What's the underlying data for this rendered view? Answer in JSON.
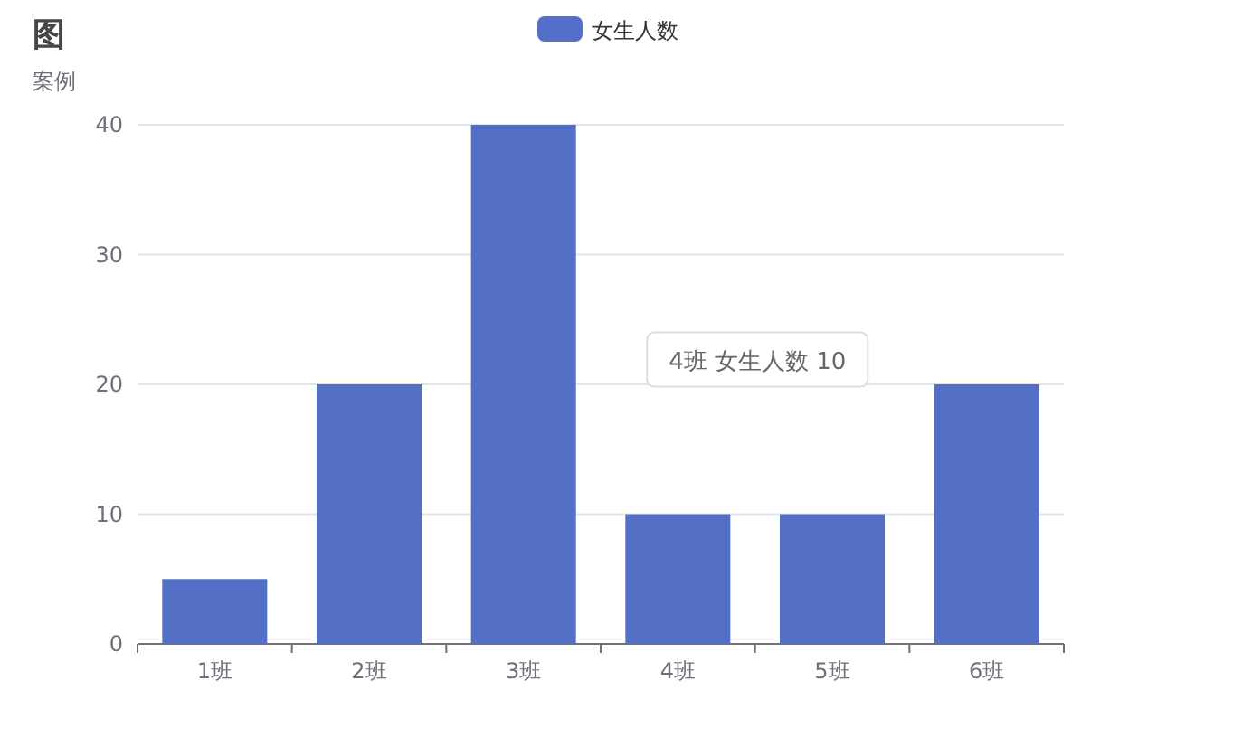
{
  "chart_data": {
    "type": "bar",
    "title": "图",
    "subtitle": "案例",
    "categories": [
      "1班",
      "2班",
      "3班",
      "4班",
      "5班",
      "6班"
    ],
    "series": [
      {
        "name": "女生人数",
        "color": "#5470c6",
        "values": [
          5,
          20,
          40,
          10,
          10,
          20
        ]
      }
    ],
    "ylim": [
      0,
      40
    ],
    "yticks": [
      0,
      10,
      20,
      30,
      40
    ],
    "grid": "y",
    "legend": "top",
    "annotations": [
      "4班 女生人数 10"
    ]
  }
}
